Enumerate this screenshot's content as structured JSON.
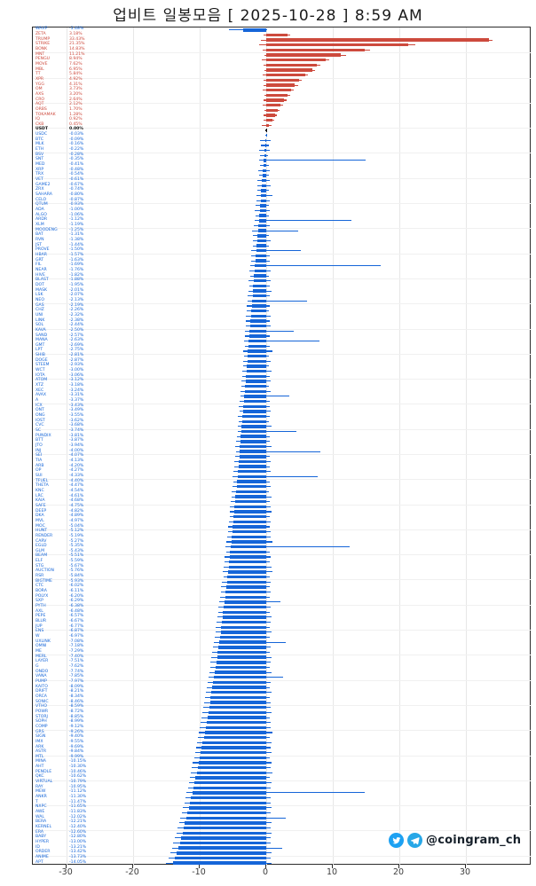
{
  "title": "업비트 일봉모음 [ 2025-10-28 ]  8:59 AM",
  "watermark": {
    "handle": "@coingram_ch",
    "icons": [
      "twitter-icon",
      "telegram-icon"
    ],
    "twitter_color": "#1da1f2",
    "telegram_color": "#27a7e7"
  },
  "chart_data": {
    "type": "bar",
    "orientation": "horizontal",
    "title": "업비트 일봉모음 [ 2025-10-28 ]  8:59 AM",
    "xlabel": "",
    "ylabel": "",
    "x_ticks": [
      -30,
      -20,
      -10,
      0,
      10,
      20,
      30
    ],
    "xlim": [
      -35.1,
      39.9
    ],
    "grid": true,
    "legend": "none",
    "value_format": "0.00%",
    "colors": {
      "positive": "#cd4a3d",
      "negative": "#1565d8",
      "neutral": "#111111"
    },
    "rows_schema": [
      "ticker",
      "change_pct",
      "low_pct",
      "high_pct"
    ],
    "rows": [
      [
        "WAXP",
        -3.48,
        -5.62,
        0.21
      ],
      [
        "ZETA",
        3.18,
        -0.42,
        3.54
      ],
      [
        "TRUMP",
        33.43,
        -0.85,
        33.95
      ],
      [
        "STRIKE",
        21.35,
        -1.1,
        22.4
      ],
      [
        "BONK",
        14.83,
        -0.52,
        15.6
      ],
      [
        "MNT",
        11.21,
        -0.33,
        12.05
      ],
      [
        "PENGU",
        8.94,
        -0.61,
        9.52
      ],
      [
        "MOVE",
        7.62,
        -0.44,
        8.15
      ],
      [
        "MBL",
        6.95,
        -0.21,
        7.33
      ],
      [
        "TT",
        5.84,
        -0.5,
        6.24
      ],
      [
        "XPR",
        4.92,
        -0.35,
        5.31
      ],
      [
        "YGG",
        4.31,
        -0.42,
        4.78
      ],
      [
        "OM",
        3.73,
        -0.58,
        4.12
      ],
      [
        "AXS",
        3.2,
        -0.31,
        3.62
      ],
      [
        "CRO",
        2.64,
        -0.4,
        3.05
      ],
      [
        "AQT",
        2.12,
        -0.52,
        2.55
      ],
      [
        "ORBS",
        1.7,
        -0.28,
        2.02
      ],
      [
        "TOKAMAK",
        1.28,
        -0.41,
        1.64
      ],
      [
        "IQ",
        0.92,
        -0.47,
        1.21
      ],
      [
        "CKB",
        0.45,
        -0.63,
        0.84
      ],
      [
        "USDT",
        0.0,
        -0.14,
        0.15
      ],
      [
        "USDC",
        -0.03,
        -0.12,
        0.1
      ],
      [
        "BTC",
        -0.09,
        -0.88,
        0.62
      ],
      [
        "MLK",
        -0.16,
        -0.75,
        0.4
      ],
      [
        "ETH",
        -0.22,
        -1.05,
        0.55
      ],
      [
        "BSV",
        -0.28,
        -0.92,
        0.33
      ],
      [
        "SNT",
        -0.35,
        -1.1,
        14.9
      ],
      [
        "MED",
        -0.41,
        -0.98,
        0.45
      ],
      [
        "XRP",
        -0.48,
        -1.22,
        0.61
      ],
      [
        "TRX",
        -0.54,
        -1.02,
        0.38
      ],
      [
        "VET",
        -0.61,
        -1.31,
        0.52
      ],
      [
        "GAME2",
        -0.67,
        -1.28,
        0.71
      ],
      [
        "ZRX",
        -0.74,
        -1.4,
        0.44
      ],
      [
        "SAHARA",
        -0.8,
        -1.52,
        0.95
      ],
      [
        "CELO",
        -0.87,
        -1.44,
        0.5
      ],
      [
        "QTUM",
        -0.93,
        -1.61,
        0.42
      ],
      [
        "ADA",
        -1.0,
        -1.72,
        0.58
      ],
      [
        "ALGO",
        -1.06,
        -1.65,
        0.47
      ],
      [
        "ARDR",
        -1.12,
        -1.8,
        12.8
      ],
      [
        "XLM",
        -1.19,
        -1.85,
        0.53
      ],
      [
        "MOODENG",
        -1.25,
        -2.1,
        4.8
      ],
      [
        "BAT",
        -1.31,
        -1.95,
        0.4
      ],
      [
        "RVN",
        -1.38,
        -2.05,
        0.62
      ],
      [
        "JST",
        -1.44,
        -2.0,
        0.35
      ],
      [
        "PROVE",
        -1.5,
        -2.32,
        5.2
      ],
      [
        "HBAR",
        -1.57,
        -2.21,
        0.49
      ],
      [
        "GRT",
        -1.63,
        -2.3,
        0.57
      ],
      [
        "FIL",
        -1.69,
        -2.42,
        17.2
      ],
      [
        "NEAR",
        -1.76,
        -2.51,
        0.66
      ],
      [
        "HIVE",
        -1.82,
        -2.4,
        0.41
      ],
      [
        "BLAST",
        -1.88,
        -2.62,
        0.74
      ],
      [
        "DOT",
        -1.95,
        -2.55,
        0.48
      ],
      [
        "MASK",
        -2.01,
        -2.7,
        0.83
      ],
      [
        "LSK",
        -2.07,
        -2.81,
        0.52
      ],
      [
        "NEO",
        -2.13,
        -2.75,
        6.1
      ],
      [
        "GAS",
        -2.19,
        -2.94,
        0.61
      ],
      [
        "CHZ",
        -2.26,
        -2.88,
        0.45
      ],
      [
        "UNI",
        -2.32,
        -3.05,
        0.7
      ],
      [
        "LINK",
        -2.38,
        -3.12,
        0.55
      ],
      [
        "SOL",
        -2.44,
        -3.02,
        0.63
      ],
      [
        "KAVA",
        -2.5,
        -3.21,
        4.2
      ],
      [
        "SAND",
        -2.57,
        -3.15,
        0.49
      ],
      [
        "MANA",
        -2.63,
        -3.3,
        8.0
      ],
      [
        "GMT",
        -2.69,
        -3.24,
        0.58
      ],
      [
        "LPT",
        -2.75,
        -3.42,
        0.91
      ],
      [
        "SHIB",
        -2.81,
        -3.35,
        0.46
      ],
      [
        "DOGE",
        -2.87,
        -3.52,
        0.68
      ],
      [
        "STEEM",
        -2.93,
        -3.44,
        0.39
      ],
      [
        "WCT",
        -3.0,
        -3.65,
        0.75
      ],
      [
        "IOTA",
        -3.06,
        -3.58,
        0.51
      ],
      [
        "ATOM",
        -3.12,
        -3.72,
        0.62
      ],
      [
        "XTZ",
        -3.18,
        -3.8,
        0.44
      ],
      [
        "XEC",
        -3.24,
        -3.92,
        0.7
      ],
      [
        "AVAX",
        -3.31,
        -3.85,
        3.5
      ],
      [
        "A",
        -3.37,
        -4.02,
        0.56
      ],
      [
        "ICX",
        -3.43,
        -4.1,
        0.48
      ],
      [
        "ONT",
        -3.49,
        -4.05,
        0.65
      ],
      [
        "ONG",
        -3.55,
        -4.22,
        0.52
      ],
      [
        "IOST",
        -3.62,
        -4.15,
        0.43
      ],
      [
        "CVC",
        -3.68,
        -4.31,
        0.74
      ],
      [
        "SC",
        -3.74,
        -4.25,
        4.6
      ],
      [
        "PUNDIX",
        -3.81,
        -4.42,
        0.58
      ],
      [
        "BTT",
        -3.87,
        -4.5,
        0.47
      ],
      [
        "JTO",
        -3.94,
        -4.62,
        0.81
      ],
      [
        "INJ",
        -4.0,
        -4.55,
        8.2
      ],
      [
        "SEI",
        -4.07,
        -4.73,
        0.55
      ],
      [
        "TIA",
        -4.13,
        -4.82,
        0.64
      ],
      [
        "ARB",
        -4.2,
        -4.75,
        0.49
      ],
      [
        "OP",
        -4.27,
        -4.92,
        0.71
      ],
      [
        "SUI",
        -4.33,
        -5.02,
        7.8
      ],
      [
        "TFUEL",
        -4.4,
        -4.95,
        0.53
      ],
      [
        "THETA",
        -4.47,
        -5.12,
        0.66
      ],
      [
        "KNC",
        -4.54,
        -5.2,
        0.45
      ],
      [
        "LRC",
        -4.61,
        -5.15,
        0.77
      ],
      [
        "KAIA",
        -4.68,
        -5.32,
        0.58
      ],
      [
        "SAFE",
        -4.75,
        -5.41,
        0.62
      ],
      [
        "DEEP",
        -4.82,
        -5.5,
        0.85
      ],
      [
        "DKA",
        -4.89,
        -5.44,
        0.5
      ],
      [
        "MVL",
        -4.97,
        -5.62,
        0.68
      ],
      [
        "MOC",
        -5.04,
        -5.71,
        0.54
      ],
      [
        "HUNT",
        -5.12,
        -5.8,
        0.72
      ],
      [
        "RENDER",
        -5.19,
        -5.92,
        0.61
      ],
      [
        "CARV",
        -5.27,
        -6.01,
        0.88
      ],
      [
        "EGLD",
        -5.35,
        -6.12,
        12.5
      ],
      [
        "GLM",
        -5.43,
        -6.05,
        0.57
      ],
      [
        "BEAM",
        -5.51,
        -6.22,
        0.7
      ],
      [
        "ELF",
        -5.59,
        -6.31,
        0.52
      ],
      [
        "STG",
        -5.67,
        -6.4,
        0.79
      ],
      [
        "AUCTION",
        -5.76,
        -6.52,
        0.93
      ],
      [
        "RSR",
        -5.84,
        -6.45,
        0.6
      ],
      [
        "BIGTIME",
        -5.93,
        -6.62,
        0.74
      ],
      [
        "CTC",
        -6.02,
        -6.75,
        0.55
      ],
      [
        "BORA",
        -6.11,
        -6.82,
        0.67
      ],
      [
        "POLYX",
        -6.2,
        -6.95,
        0.58
      ],
      [
        "SXP",
        -6.29,
        -7.02,
        2.2
      ],
      [
        "PYTH",
        -6.38,
        -7.15,
        0.71
      ],
      [
        "AXL",
        -6.48,
        -7.22,
        0.54
      ],
      [
        "PEPE",
        -6.57,
        -7.35,
        0.82
      ],
      [
        "BLUR",
        -6.67,
        -7.42,
        0.63
      ],
      [
        "JUP",
        -6.77,
        -7.55,
        0.58
      ],
      [
        "ENS",
        -6.87,
        -7.64,
        0.76
      ],
      [
        "W",
        -6.97,
        -7.75,
        0.52
      ],
      [
        "UXLINK",
        -7.08,
        -7.92,
        3.0
      ],
      [
        "OMNI",
        -7.18,
        -8.05,
        0.69
      ],
      [
        "ME",
        -7.29,
        -8.12,
        0.57
      ],
      [
        "MERL",
        -7.4,
        -8.25,
        0.81
      ],
      [
        "LAYER",
        -7.51,
        -8.34,
        0.62
      ],
      [
        "G",
        -7.62,
        -8.45,
        0.55
      ],
      [
        "ONDO",
        -7.74,
        -8.6,
        0.73
      ],
      [
        "VANA",
        -7.85,
        -8.72,
        2.5
      ],
      [
        "PUMP",
        -7.97,
        -8.85,
        0.66
      ],
      [
        "KAITO",
        -8.09,
        -8.95,
        0.59
      ],
      [
        "DRIFT",
        -8.21,
        -9.1,
        0.78
      ],
      [
        "ORCA",
        -8.34,
        -9.22,
        0.54
      ],
      [
        "SONIC",
        -8.46,
        -9.35,
        0.7
      ],
      [
        "VTHO",
        -8.59,
        -9.44,
        0.61
      ],
      [
        "POWR",
        -8.72,
        -9.6,
        0.84
      ],
      [
        "STORJ",
        -8.85,
        -9.72,
        0.57
      ],
      [
        "SOPH",
        -8.99,
        -9.85,
        0.72
      ],
      [
        "COMP",
        -9.12,
        -10.02,
        0.63
      ],
      [
        "GRS",
        -9.26,
        -10.15,
        0.88
      ],
      [
        "SIGN",
        -9.4,
        -10.28,
        0.59
      ],
      [
        "IMX",
        -9.55,
        -10.42,
        0.75
      ],
      [
        "ARK",
        -9.69,
        -10.55,
        0.64
      ],
      [
        "ASTR",
        -9.84,
        -10.72,
        0.81
      ],
      [
        "MTL",
        -9.99,
        -10.85,
        0.58
      ],
      [
        "MINA",
        -10.15,
        -11.02,
        0.77
      ],
      [
        "AHT",
        -10.3,
        -11.15,
        0.65
      ],
      [
        "PENDLE",
        -10.46,
        -11.32,
        0.92
      ],
      [
        "QKC",
        -10.62,
        -11.45,
        0.6
      ],
      [
        "VIRTUAL",
        -10.79,
        -11.64,
        0.83
      ],
      [
        "RAY",
        -10.95,
        -11.8,
        0.67
      ],
      [
        "MEW",
        -11.12,
        -12.02,
        14.8
      ],
      [
        "ANKR",
        -11.3,
        -12.15,
        0.72
      ],
      [
        "T",
        -11.47,
        -12.32,
        0.61
      ],
      [
        "NXPC",
        -11.65,
        -12.52,
        0.85
      ],
      [
        "AWE",
        -11.83,
        -12.7,
        0.69
      ],
      [
        "WAL",
        -12.02,
        -12.92,
        3.0
      ],
      [
        "BERA",
        -12.21,
        -13.1,
        0.74
      ],
      [
        "KERNEL",
        -12.4,
        -13.32,
        0.62
      ],
      [
        "ERA",
        -12.6,
        -13.52,
        0.8
      ],
      [
        "BABY",
        -12.8,
        -13.75,
        0.66
      ],
      [
        "HYPER",
        -13.0,
        -13.95,
        0.73
      ],
      [
        "ID",
        -13.21,
        -14.18,
        2.4
      ],
      [
        "ORDER",
        -13.42,
        -14.4,
        0.85
      ],
      [
        "ANIME",
        -13.73,
        -14.72,
        0.64
      ],
      [
        "APT",
        -14.05,
        -15.1,
        0.78
      ]
    ]
  }
}
